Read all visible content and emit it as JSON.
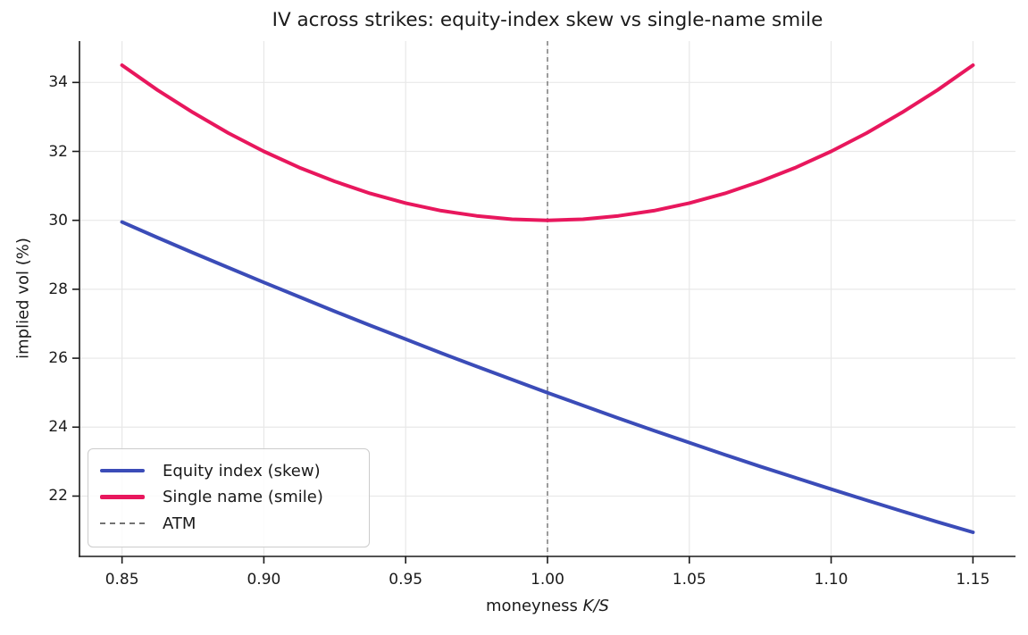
{
  "chart_data": {
    "type": "line",
    "title": "IV across strikes: equity-index skew vs single-name smile",
    "xlabel_prefix": "moneyness ",
    "xlabel_math": "K/S",
    "ylabel": "implied vol (%)",
    "xlim": [
      0.835,
      1.165
    ],
    "ylim": [
      20.25,
      35.2
    ],
    "grid": true,
    "legend_position": "lower left",
    "x_ticks": [
      0.85,
      0.9,
      0.95,
      1.0,
      1.05,
      1.1,
      1.15
    ],
    "x_tick_labels": [
      "0.85",
      "0.90",
      "0.95",
      "1.00",
      "1.05",
      "1.10",
      "1.15"
    ],
    "y_ticks": [
      22,
      24,
      26,
      28,
      30,
      32,
      34
    ],
    "y_tick_labels": [
      "22",
      "24",
      "26",
      "28",
      "30",
      "32",
      "34"
    ],
    "x": [
      0.85,
      0.8625,
      0.875,
      0.8875,
      0.9,
      0.9125,
      0.925,
      0.9375,
      0.95,
      0.9625,
      0.975,
      0.9875,
      1.0,
      1.0125,
      1.025,
      1.0375,
      1.05,
      1.0625,
      1.075,
      1.0875,
      1.1,
      1.1125,
      1.125,
      1.1375,
      1.15
    ],
    "series": [
      {
        "name": "Equity index (skew)",
        "color": "#3b4cb8",
        "style": "solid",
        "values": [
          29.95,
          29.5,
          29.06,
          28.63,
          28.2,
          27.78,
          27.36,
          26.95,
          26.55,
          26.15,
          25.76,
          25.38,
          25.0,
          24.63,
          24.26,
          23.9,
          23.55,
          23.2,
          22.86,
          22.53,
          22.2,
          21.88,
          21.56,
          21.25,
          20.95
        ]
      },
      {
        "name": "Single name (smile)",
        "color": "#e8175d",
        "style": "solid",
        "values": [
          34.5,
          33.78,
          33.13,
          32.53,
          32.0,
          31.53,
          31.13,
          30.78,
          30.5,
          30.28,
          30.13,
          30.03,
          30.0,
          30.03,
          30.13,
          30.28,
          30.5,
          30.78,
          31.13,
          31.53,
          32.0,
          32.53,
          33.13,
          33.78,
          34.5
        ]
      }
    ],
    "annotations": [
      {
        "name": "ATM",
        "type": "vline",
        "x": 1.0,
        "color": "#737373",
        "style": "dashed"
      }
    ],
    "colors": {
      "axis": "#1a1a1a",
      "grid": "#e8e8e8",
      "legend_border": "#cccccc",
      "background": "#ffffff"
    }
  }
}
